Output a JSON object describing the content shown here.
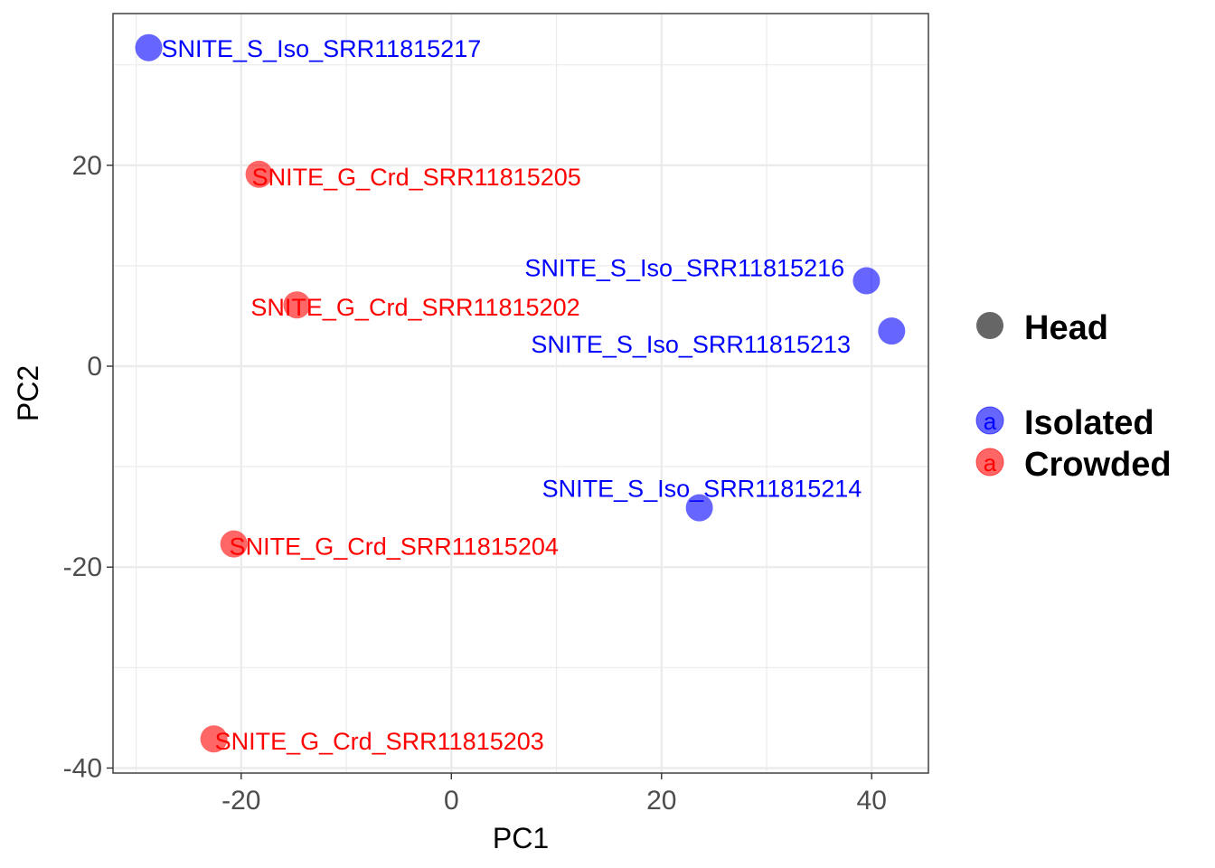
{
  "chart_data": {
    "type": "scatter",
    "xlabel": "PC1",
    "ylabel": "PC2",
    "xlim": [
      -32.2,
      45.4
    ],
    "ylim": [
      -40.5,
      35.1
    ],
    "x_ticks": [
      -20,
      0,
      20,
      40
    ],
    "y_ticks": [
      -40,
      -20,
      0,
      20
    ],
    "grid": true,
    "legend_position": "right",
    "legend": {
      "shape_title": "Head",
      "entries": [
        {
          "name": "Isolated",
          "color": "#0000ff"
        },
        {
          "name": "Crowded",
          "color": "#ff0000"
        }
      ],
      "key_glyph": "a"
    },
    "points": [
      {
        "label": "SNITE_S_Iso_SRR11815217",
        "group": "Isolated",
        "x": -28.8,
        "y": 31.7
      },
      {
        "label": "SNITE_G_Crd_SRR11815205",
        "group": "Crowded",
        "x": -18.3,
        "y": 19.1
      },
      {
        "label": "SNITE_G_Crd_SRR11815202",
        "group": "Crowded",
        "x": -14.7,
        "y": 6.1
      },
      {
        "label": "SNITE_S_Iso_SRR11815216",
        "group": "Isolated",
        "x": 39.5,
        "y": 8.5
      },
      {
        "label": "SNITE_S_Iso_SRR11815213",
        "group": "Isolated",
        "x": 41.9,
        "y": 3.5
      },
      {
        "label": "SNITE_S_Iso_SRR11815214",
        "group": "Isolated",
        "x": 23.6,
        "y": -14.1
      },
      {
        "label": "SNITE_G_Crd_SRR11815204",
        "group": "Crowded",
        "x": -20.7,
        "y": -17.7
      },
      {
        "label": "SNITE_G_Crd_SRR11815203",
        "group": "Crowded",
        "x": -22.6,
        "y": -37.1
      }
    ]
  }
}
